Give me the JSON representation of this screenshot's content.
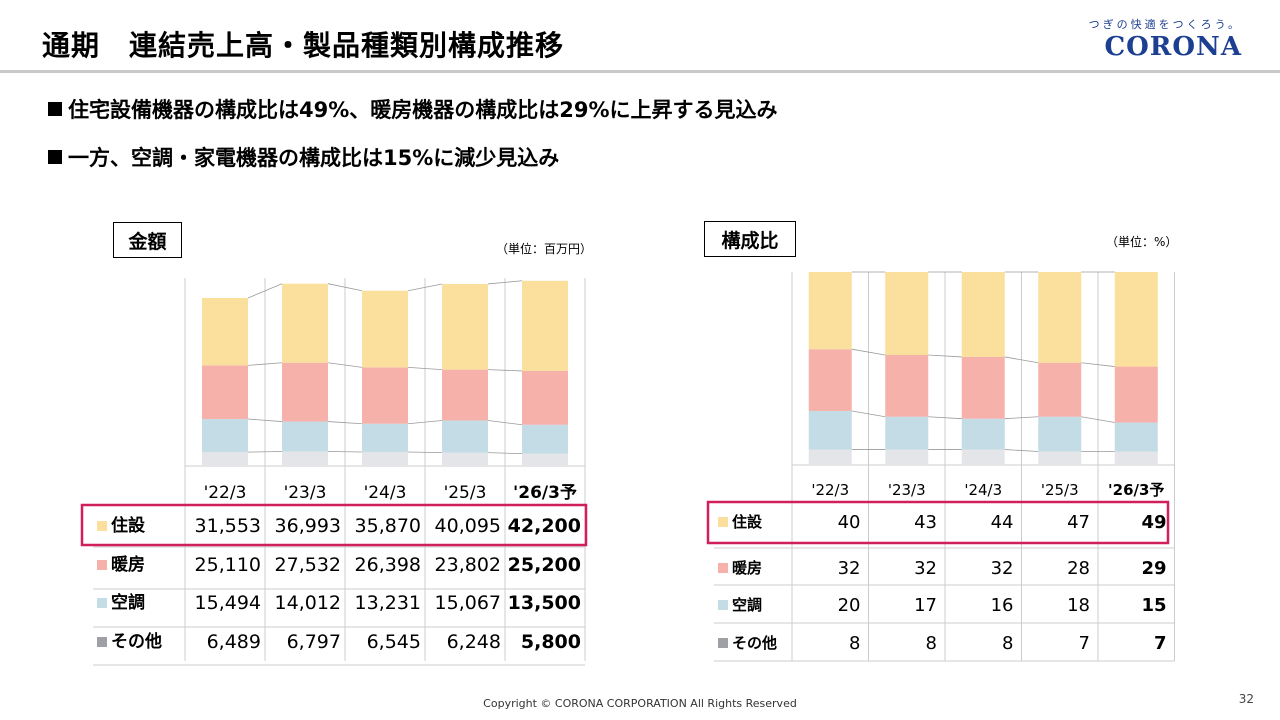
{
  "header": {
    "title": "通期　連結売上高・製品種類別構成推移",
    "logo_tagline": "つぎの快適をつくろう。",
    "logo_name": "CORONA"
  },
  "bullets": [
    "住宅設備機器の構成比は49%、暖房機器の構成比は29%に上昇する見込み",
    "一方、空調・家電機器の構成比は15%に減少見込み"
  ],
  "left_panel": {
    "label": "金額",
    "unit": "（単位：百万円）"
  },
  "right_panel": {
    "label": "構成比",
    "unit": "（単位：%）"
  },
  "footer": {
    "copyright": "Copyright © CORONA CORPORATION All Rights Reserved",
    "page": "32"
  },
  "colors": {
    "housing": "#fbdf9c",
    "heating": "#f6b1ab",
    "aircon": "#c3dce5",
    "other": "#e3e5e8",
    "other_marker": "#9fa0a6",
    "highlight": "#d11f5b",
    "grid": "#cccccc"
  },
  "chart_data": [
    {
      "type": "bar",
      "title": "金額",
      "unit": "（単位：百万円）",
      "stacked": true,
      "categories": [
        "'22/3",
        "'23/3",
        "'24/3",
        "'25/3",
        "'26/3予"
      ],
      "series": [
        {
          "name": "住設",
          "values": [
            31553,
            36993,
            35870,
            40095,
            42200
          ]
        },
        {
          "name": "暖房",
          "values": [
            25110,
            27532,
            26398,
            23802,
            25200
          ]
        },
        {
          "name": "空調",
          "values": [
            15494,
            14012,
            13231,
            15067,
            13500
          ]
        },
        {
          "name": "その他",
          "values": [
            6489,
            6797,
            6545,
            6248,
            5800
          ]
        }
      ],
      "value_labels": [
        [
          "31,553",
          "36,993",
          "35,870",
          "40,095",
          "42,200"
        ],
        [
          "25,110",
          "27,532",
          "26,398",
          "23,802",
          "25,200"
        ],
        [
          "15,494",
          "14,012",
          "13,231",
          "15,067",
          "13,500"
        ],
        [
          "6,489",
          "6,797",
          "6,545",
          "6,248",
          "5,800"
        ]
      ],
      "ylim": [
        0,
        88000
      ],
      "highlighted_series": "住設",
      "bold_category": "'26/3予"
    },
    {
      "type": "bar",
      "title": "構成比",
      "unit": "（単位：%）",
      "stacked": true,
      "categories": [
        "'22/3",
        "'23/3",
        "'24/3",
        "'25/3",
        "'26/3予"
      ],
      "series": [
        {
          "name": "住設",
          "values": [
            40,
            43,
            44,
            47,
            49
          ]
        },
        {
          "name": "暖房",
          "values": [
            32,
            32,
            32,
            28,
            29
          ]
        },
        {
          "name": "空調",
          "values": [
            20,
            17,
            16,
            18,
            15
          ]
        },
        {
          "name": "その他",
          "values": [
            8,
            8,
            8,
            7,
            7
          ]
        }
      ],
      "value_labels": [
        [
          "40",
          "43",
          "44",
          "47",
          "49"
        ],
        [
          "32",
          "32",
          "32",
          "28",
          "29"
        ],
        [
          "20",
          "17",
          "16",
          "18",
          "15"
        ],
        [
          "8",
          "8",
          "8",
          "7",
          "7"
        ]
      ],
      "ylim": [
        0,
        100
      ],
      "highlighted_series": "住設",
      "bold_category": "'26/3予"
    }
  ]
}
